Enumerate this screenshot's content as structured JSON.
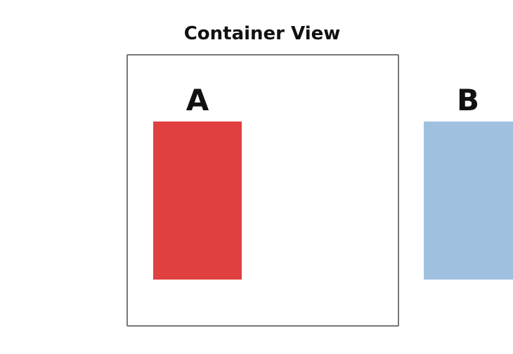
{
  "container": {
    "title": "Container View",
    "border_color": "#777777"
  },
  "view_a": {
    "label": "A",
    "color": "#e04040"
  },
  "view_b": {
    "label": "B",
    "color": "#a0c0e0"
  }
}
